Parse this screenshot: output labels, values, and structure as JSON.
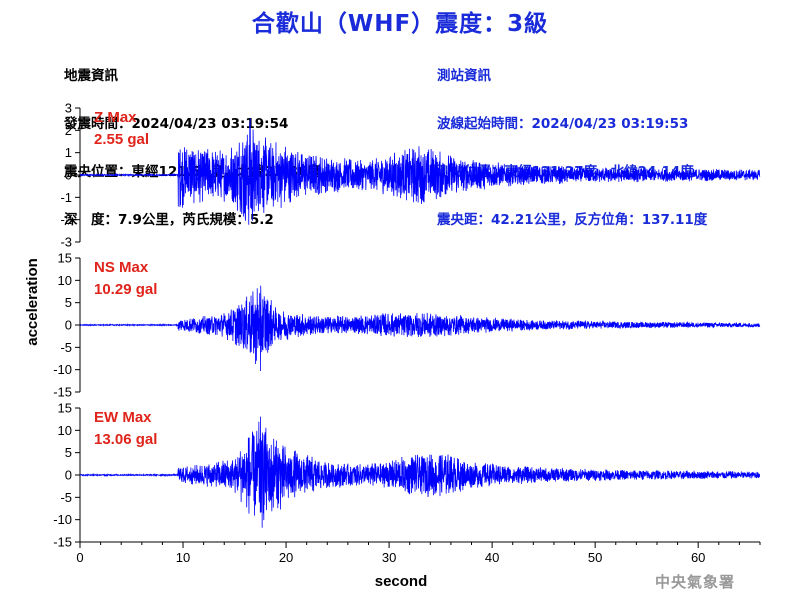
{
  "title": "合歡山（WHF）震度：3級",
  "earthquake_info": {
    "heading": "地震資訊",
    "origin_time": "發震時間：2024/04/23 03:19:54",
    "epicenter": "震央位置：東經121.55度，北緯23.86度",
    "depth_magnitude": "深　度：7.9公里，芮氏規模：5.2"
  },
  "station_info": {
    "heading": "測站資訊",
    "wave_start": "波線起始時間：2024/04/23 03:19:53",
    "location": "測站位置：東經121.27度，北緯24.14度",
    "distance": "震央距：42.21公里，反方位角：137.11度"
  },
  "credit": "中央氣象署",
  "colors": {
    "title": "#1a2bd9",
    "trace": "#0000ff",
    "max_label": "#e0241b"
  },
  "chart_data": {
    "type": "line",
    "xlabel": "second",
    "ylabel": "acceleration",
    "xlim": [
      0,
      66
    ],
    "x_ticks": [
      0,
      10,
      20,
      30,
      40,
      50,
      60
    ],
    "channels": [
      {
        "name": "Z",
        "max_label": "Z Max",
        "max_value": "2.55 gal",
        "ylim": [
          -3,
          3
        ],
        "y_ticks": [
          3,
          2,
          1,
          0,
          -1,
          -2,
          -3
        ],
        "peak": 2.55,
        "onset_s": 9.5,
        "envelope": [
          [
            9.5,
            1.6
          ],
          [
            12,
            1.2
          ],
          [
            14.5,
            1.3
          ],
          [
            16.5,
            2.55
          ],
          [
            18,
            1.8
          ],
          [
            20,
            1.4
          ],
          [
            22,
            1.0
          ],
          [
            25,
            0.8
          ],
          [
            28,
            0.7
          ],
          [
            33,
            1.4
          ],
          [
            37,
            0.8
          ],
          [
            42,
            0.5
          ],
          [
            50,
            0.35
          ],
          [
            58,
            0.3
          ],
          [
            66,
            0.25
          ]
        ]
      },
      {
        "name": "NS",
        "max_label": "NS Max",
        "max_value": "10.29 gal",
        "ylim": [
          -15,
          15
        ],
        "y_ticks": [
          15,
          10,
          5,
          0,
          -5,
          -10,
          -15
        ],
        "peak": 10.29,
        "onset_s": 9.5,
        "envelope": [
          [
            9.5,
            1.5
          ],
          [
            12,
            2.0
          ],
          [
            14,
            3.0
          ],
          [
            16,
            6.0
          ],
          [
            17.5,
            10.29
          ],
          [
            19,
            4.0
          ],
          [
            22,
            2.5
          ],
          [
            26,
            2.0
          ],
          [
            30,
            2.8
          ],
          [
            34,
            3.0
          ],
          [
            38,
            2.0
          ],
          [
            44,
            1.2
          ],
          [
            52,
            0.8
          ],
          [
            66,
            0.5
          ]
        ]
      },
      {
        "name": "EW",
        "max_label": "EW Max",
        "max_value": "13.06 gal",
        "ylim": [
          -15,
          15
        ],
        "y_ticks": [
          15,
          10,
          5,
          0,
          -5,
          -10,
          -15
        ],
        "peak": 13.06,
        "onset_s": 9.5,
        "envelope": [
          [
            9.5,
            2.0
          ],
          [
            12,
            2.5
          ],
          [
            15,
            4.0
          ],
          [
            16.5,
            10.0
          ],
          [
            17.5,
            13.06
          ],
          [
            19,
            9.0
          ],
          [
            20.5,
            6.0
          ],
          [
            24,
            3.0
          ],
          [
            28,
            2.5
          ],
          [
            32,
            4.5
          ],
          [
            35,
            5.5
          ],
          [
            38,
            3.0
          ],
          [
            44,
            1.8
          ],
          [
            52,
            1.2
          ],
          [
            66,
            0.8
          ]
        ]
      }
    ]
  }
}
